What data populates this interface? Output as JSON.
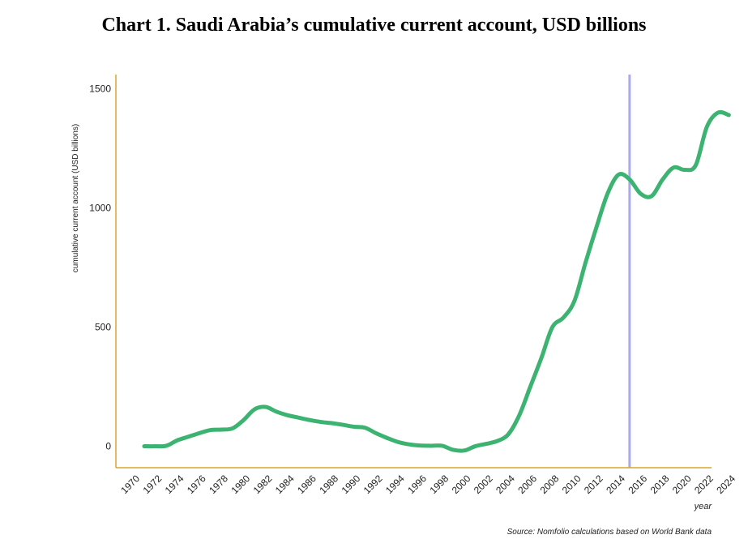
{
  "chart_data": {
    "type": "line",
    "title": "Chart 1. Saudi Arabia’s cumulative current account, USD billions",
    "ylabel": "cumulative current account (USD billions)",
    "xlabel": "year",
    "source": "Source: Nomfolio calculations based on World Bank data",
    "xlim": [
      1970,
      2024
    ],
    "ylim": [
      -90,
      1560
    ],
    "yticks": [
      0,
      500,
      1000,
      1500
    ],
    "xticks": [
      1970,
      1972,
      1974,
      1976,
      1978,
      1980,
      1982,
      1984,
      1986,
      1988,
      1990,
      1992,
      1994,
      1996,
      1998,
      2000,
      2002,
      2004,
      2006,
      2008,
      2010,
      2012,
      2014,
      2016,
      2018,
      2020,
      2022,
      2024
    ],
    "highlight_x": 2014,
    "series": [
      {
        "color": "#3cb371",
        "x": [
          1970,
          1971,
          1972,
          1973,
          1974,
          1975,
          1976,
          1977,
          1978,
          1979,
          1980,
          1981,
          1982,
          1983,
          1984,
          1985,
          1986,
          1987,
          1988,
          1989,
          1990,
          1991,
          1992,
          1993,
          1994,
          1995,
          1996,
          1997,
          1998,
          1999,
          2000,
          2001,
          2002,
          2003,
          2004,
          2005,
          2006,
          2007,
          2008,
          2009,
          2010,
          2011,
          2012,
          2013,
          2014,
          2015,
          2016,
          2017,
          2018,
          2019,
          2020,
          2021,
          2022,
          2023
        ],
        "y": [
          0,
          0,
          2,
          25,
          40,
          55,
          68,
          70,
          75,
          110,
          155,
          165,
          145,
          130,
          120,
          110,
          102,
          97,
          90,
          82,
          78,
          55,
          35,
          18,
          8,
          3,
          2,
          2,
          -15,
          -18,
          0,
          10,
          22,
          50,
          130,
          250,
          370,
          500,
          540,
          610,
          770,
          920,
          1060,
          1140,
          1120,
          1060,
          1050,
          1120,
          1170,
          1160,
          1180,
          1340,
          1400,
          1390
        ]
      }
    ]
  }
}
